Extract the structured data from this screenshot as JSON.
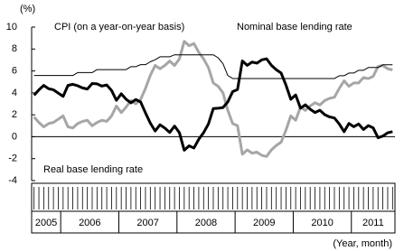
{
  "chart_data": {
    "type": "line",
    "y_label": "(%)",
    "x_label": "(Year, month)",
    "x": [
      "2005-07",
      "2005-08",
      "2005-09",
      "2005-10",
      "2005-11",
      "2005-12",
      "2006-01",
      "2006-02",
      "2006-03",
      "2006-04",
      "2006-05",
      "2006-06",
      "2006-07",
      "2006-08",
      "2006-09",
      "2006-10",
      "2006-11",
      "2006-12",
      "2007-01",
      "2007-02",
      "2007-03",
      "2007-04",
      "2007-05",
      "2007-06",
      "2007-07",
      "2007-08",
      "2007-09",
      "2007-10",
      "2007-11",
      "2007-12",
      "2008-01",
      "2008-02",
      "2008-03",
      "2008-04",
      "2008-05",
      "2008-06",
      "2008-07",
      "2008-08",
      "2008-09",
      "2008-10",
      "2008-11",
      "2008-12",
      "2009-01",
      "2009-02",
      "2009-03",
      "2009-04",
      "2009-05",
      "2009-06",
      "2009-07",
      "2009-08",
      "2009-09",
      "2009-10",
      "2009-11",
      "2009-12",
      "2010-01",
      "2010-02",
      "2010-03",
      "2010-04",
      "2010-05",
      "2010-06",
      "2010-07",
      "2010-08",
      "2010-09",
      "2010-10",
      "2010-11",
      "2010-12",
      "2011-01",
      "2011-02",
      "2011-03",
      "2011-04",
      "2011-05",
      "2011-06",
      "2011-07",
      "2011-08",
      "2011-09"
    ],
    "xlim": [
      "2005-07",
      "2011-09"
    ],
    "years": [
      2005,
      2006,
      2007,
      2008,
      2009,
      2010,
      2011
    ],
    "ylim": [
      -4,
      10
    ],
    "yticks": [
      -4,
      -2,
      0,
      2,
      4,
      6,
      8,
      10
    ],
    "series": [
      {
        "name": "CPI (on a year-on-year basis)",
        "color": "#a6a6a6",
        "width": 3,
        "values": [
          1.8,
          1.3,
          0.9,
          1.2,
          1.3,
          1.6,
          1.9,
          0.9,
          0.8,
          1.2,
          1.4,
          1.5,
          1.0,
          1.3,
          1.5,
          1.4,
          1.9,
          2.8,
          2.2,
          2.7,
          3.3,
          3.0,
          3.4,
          4.4,
          5.6,
          6.5,
          6.2,
          6.5,
          6.9,
          6.5,
          7.1,
          8.7,
          8.3,
          8.5,
          7.7,
          7.1,
          6.3,
          4.9,
          4.6,
          4.0,
          2.4,
          1.2,
          1.0,
          -1.6,
          -1.2,
          -1.5,
          -1.4,
          -1.7,
          -1.8,
          -1.2,
          -0.8,
          -0.5,
          0.6,
          1.9,
          1.5,
          2.7,
          2.4,
          2.8,
          3.1,
          2.9,
          3.3,
          3.5,
          3.6,
          4.4,
          5.1,
          4.6,
          4.9,
          4.9,
          5.4,
          5.3,
          5.5,
          6.4,
          6.5,
          6.2,
          6.1
        ]
      },
      {
        "name": "Nominal base lending rate",
        "color": "#000000",
        "width": 1,
        "values": [
          5.58,
          5.58,
          5.58,
          5.58,
          5.58,
          5.58,
          5.58,
          5.58,
          5.58,
          5.85,
          5.85,
          5.85,
          5.85,
          6.12,
          6.12,
          6.12,
          6.12,
          6.12,
          6.12,
          6.12,
          6.39,
          6.39,
          6.57,
          6.57,
          6.84,
          7.02,
          7.29,
          7.29,
          7.29,
          7.47,
          7.47,
          7.47,
          7.47,
          7.47,
          7.47,
          7.47,
          7.47,
          7.47,
          7.2,
          6.66,
          5.58,
          5.31,
          5.31,
          5.31,
          5.31,
          5.31,
          5.31,
          5.31,
          5.31,
          5.31,
          5.31,
          5.31,
          5.31,
          5.31,
          5.31,
          5.31,
          5.31,
          5.31,
          5.31,
          5.31,
          5.31,
          5.31,
          5.31,
          5.56,
          5.56,
          5.81,
          5.81,
          6.06,
          6.06,
          6.31,
          6.31,
          6.31,
          6.56,
          6.56,
          6.56
        ]
      },
      {
        "name": "Real base lending rate",
        "color": "#000000",
        "width": 3,
        "values": [
          3.78,
          4.28,
          4.68,
          4.38,
          4.28,
          3.98,
          3.68,
          4.68,
          4.78,
          4.65,
          4.45,
          4.35,
          4.85,
          4.82,
          4.62,
          4.72,
          4.22,
          3.32,
          3.92,
          3.42,
          3.09,
          3.39,
          3.17,
          2.17,
          1.24,
          0.52,
          1.09,
          0.79,
          0.39,
          0.97,
          0.37,
          -1.23,
          -0.83,
          -1.03,
          -0.23,
          0.37,
          1.17,
          2.57,
          2.6,
          2.66,
          3.18,
          4.11,
          4.31,
          6.91,
          6.51,
          6.81,
          6.71,
          7.01,
          7.11,
          6.51,
          6.11,
          5.81,
          4.71,
          3.41,
          3.81,
          2.61,
          2.91,
          2.51,
          2.21,
          2.41,
          2.01,
          1.81,
          1.71,
          1.16,
          0.46,
          1.21,
          0.91,
          1.16,
          0.66,
          1.01,
          0.81,
          -0.09,
          0.06,
          0.36,
          0.46
        ]
      }
    ]
  }
}
